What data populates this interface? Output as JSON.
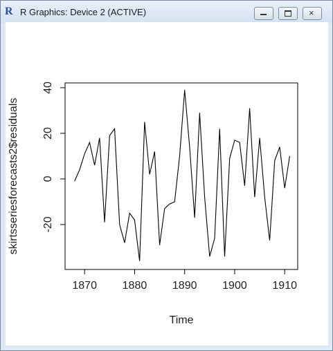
{
  "window": {
    "title": "R Graphics: Device 2 (ACTIVE)"
  },
  "chart_data": {
    "type": "line",
    "xlabel": "Time",
    "ylabel": "skirtsseriesforecasts2$residuals",
    "x": [
      1868,
      1869,
      1870,
      1871,
      1872,
      1873,
      1874,
      1875,
      1876,
      1877,
      1878,
      1879,
      1880,
      1881,
      1882,
      1883,
      1884,
      1885,
      1886,
      1887,
      1888,
      1889,
      1890,
      1891,
      1892,
      1893,
      1894,
      1895,
      1896,
      1897,
      1898,
      1899,
      1900,
      1901,
      1902,
      1903,
      1904,
      1905,
      1906,
      1907,
      1908,
      1909,
      1910,
      1911
    ],
    "values": [
      -1,
      4,
      11,
      16,
      6,
      18,
      -19,
      19,
      22,
      -20,
      -28,
      -15,
      -18,
      -36,
      25,
      2,
      12,
      -29,
      -13,
      -11,
      -10,
      10,
      39,
      14,
      -17,
      29,
      -8,
      -34,
      -26,
      22,
      -34,
      9,
      17,
      16,
      -3,
      31,
      -8,
      18,
      -8,
      -27,
      8,
      14,
      -4,
      10
    ],
    "color": "#000000",
    "xlim": [
      1866.1,
      1912.6
    ],
    "xticks": [
      1870,
      1880,
      1890,
      1900,
      1910
    ],
    "ylim": [
      -39.7,
      42.1
    ],
    "yticks": [
      -20,
      0,
      20,
      40
    ]
  }
}
